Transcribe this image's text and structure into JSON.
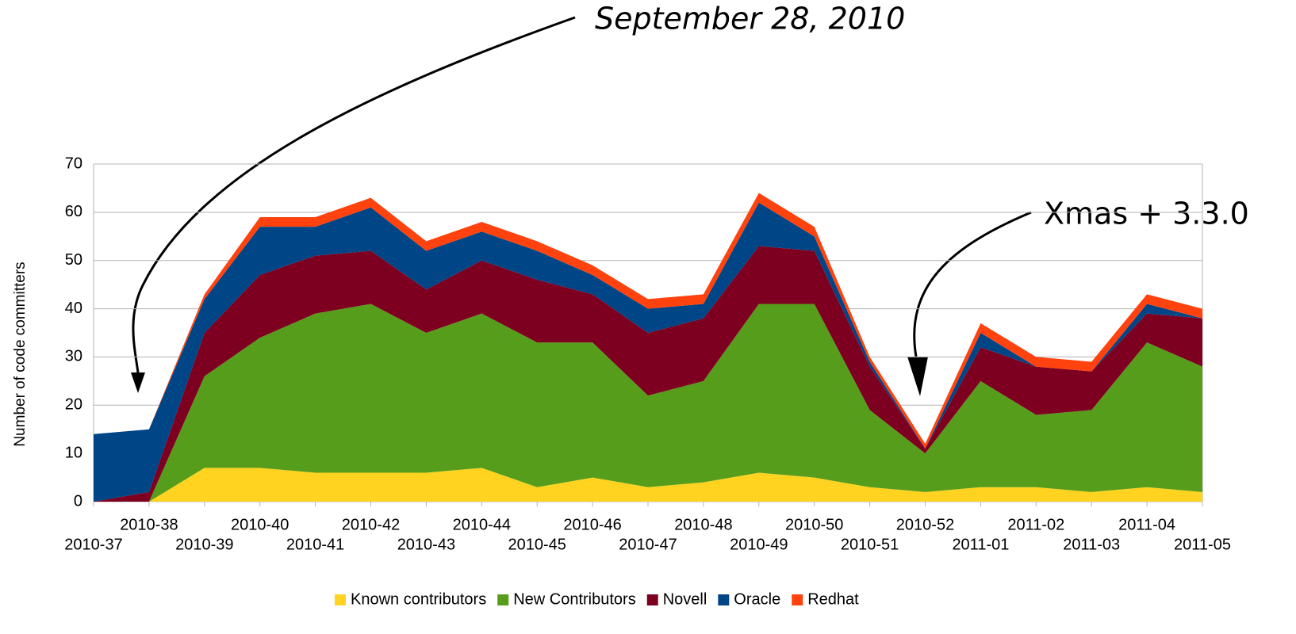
{
  "chart_data": {
    "type": "stacked_area",
    "y_label": "Number of code committers",
    "annotations": [
      "September 28, 2010",
      "Xmas + 3.3.0"
    ],
    "categories": [
      "2010-37",
      "2010-38",
      "2010-39",
      "2010-40",
      "2010-41",
      "2010-42",
      "2010-43",
      "2010-44",
      "2010-45",
      "2010-46",
      "2010-47",
      "2010-48",
      "2010-49",
      "2010-50",
      "2010-51",
      "2010-52",
      "2011-01",
      "2011-02",
      "2011-03",
      "2011-04",
      "2011-05"
    ],
    "series": [
      {
        "name": "Known contributors",
        "color": "#ffd320",
        "values": [
          0,
          0,
          7,
          7,
          6,
          6,
          6,
          7,
          3,
          5,
          3,
          4,
          6,
          5,
          3,
          2,
          3,
          3,
          2,
          3,
          2
        ]
      },
      {
        "name": "New Contributors",
        "color": "#579d1c",
        "values": [
          0,
          0,
          19,
          27,
          33,
          35,
          29,
          32,
          30,
          28,
          19,
          21,
          35,
          36,
          16,
          8,
          22,
          15,
          17,
          30,
          26
        ]
      },
      {
        "name": "Novell",
        "color": "#7e0021",
        "values": [
          0,
          2,
          9,
          13,
          12,
          11,
          9,
          11,
          13,
          10,
          13,
          13,
          12,
          11,
          9,
          1,
          7,
          10,
          8,
          6,
          10
        ]
      },
      {
        "name": "Oracle",
        "color": "#004586",
        "values": [
          14,
          13,
          7,
          10,
          6,
          9,
          8,
          6,
          6,
          4,
          5,
          3,
          9,
          3,
          1,
          0,
          3,
          0,
          0,
          2,
          0
        ]
      },
      {
        "name": "Redhat",
        "color": "#ff420e",
        "values": [
          0,
          0,
          1,
          2,
          2,
          2,
          2,
          2,
          2,
          2,
          2,
          2,
          2,
          2,
          1,
          1,
          2,
          2,
          2,
          2,
          2
        ]
      }
    ],
    "ylim": [
      0,
      70
    ],
    "yticks": [
      0,
      10,
      20,
      30,
      40,
      50,
      60,
      70
    ],
    "grid": true,
    "legend": "bottom"
  }
}
